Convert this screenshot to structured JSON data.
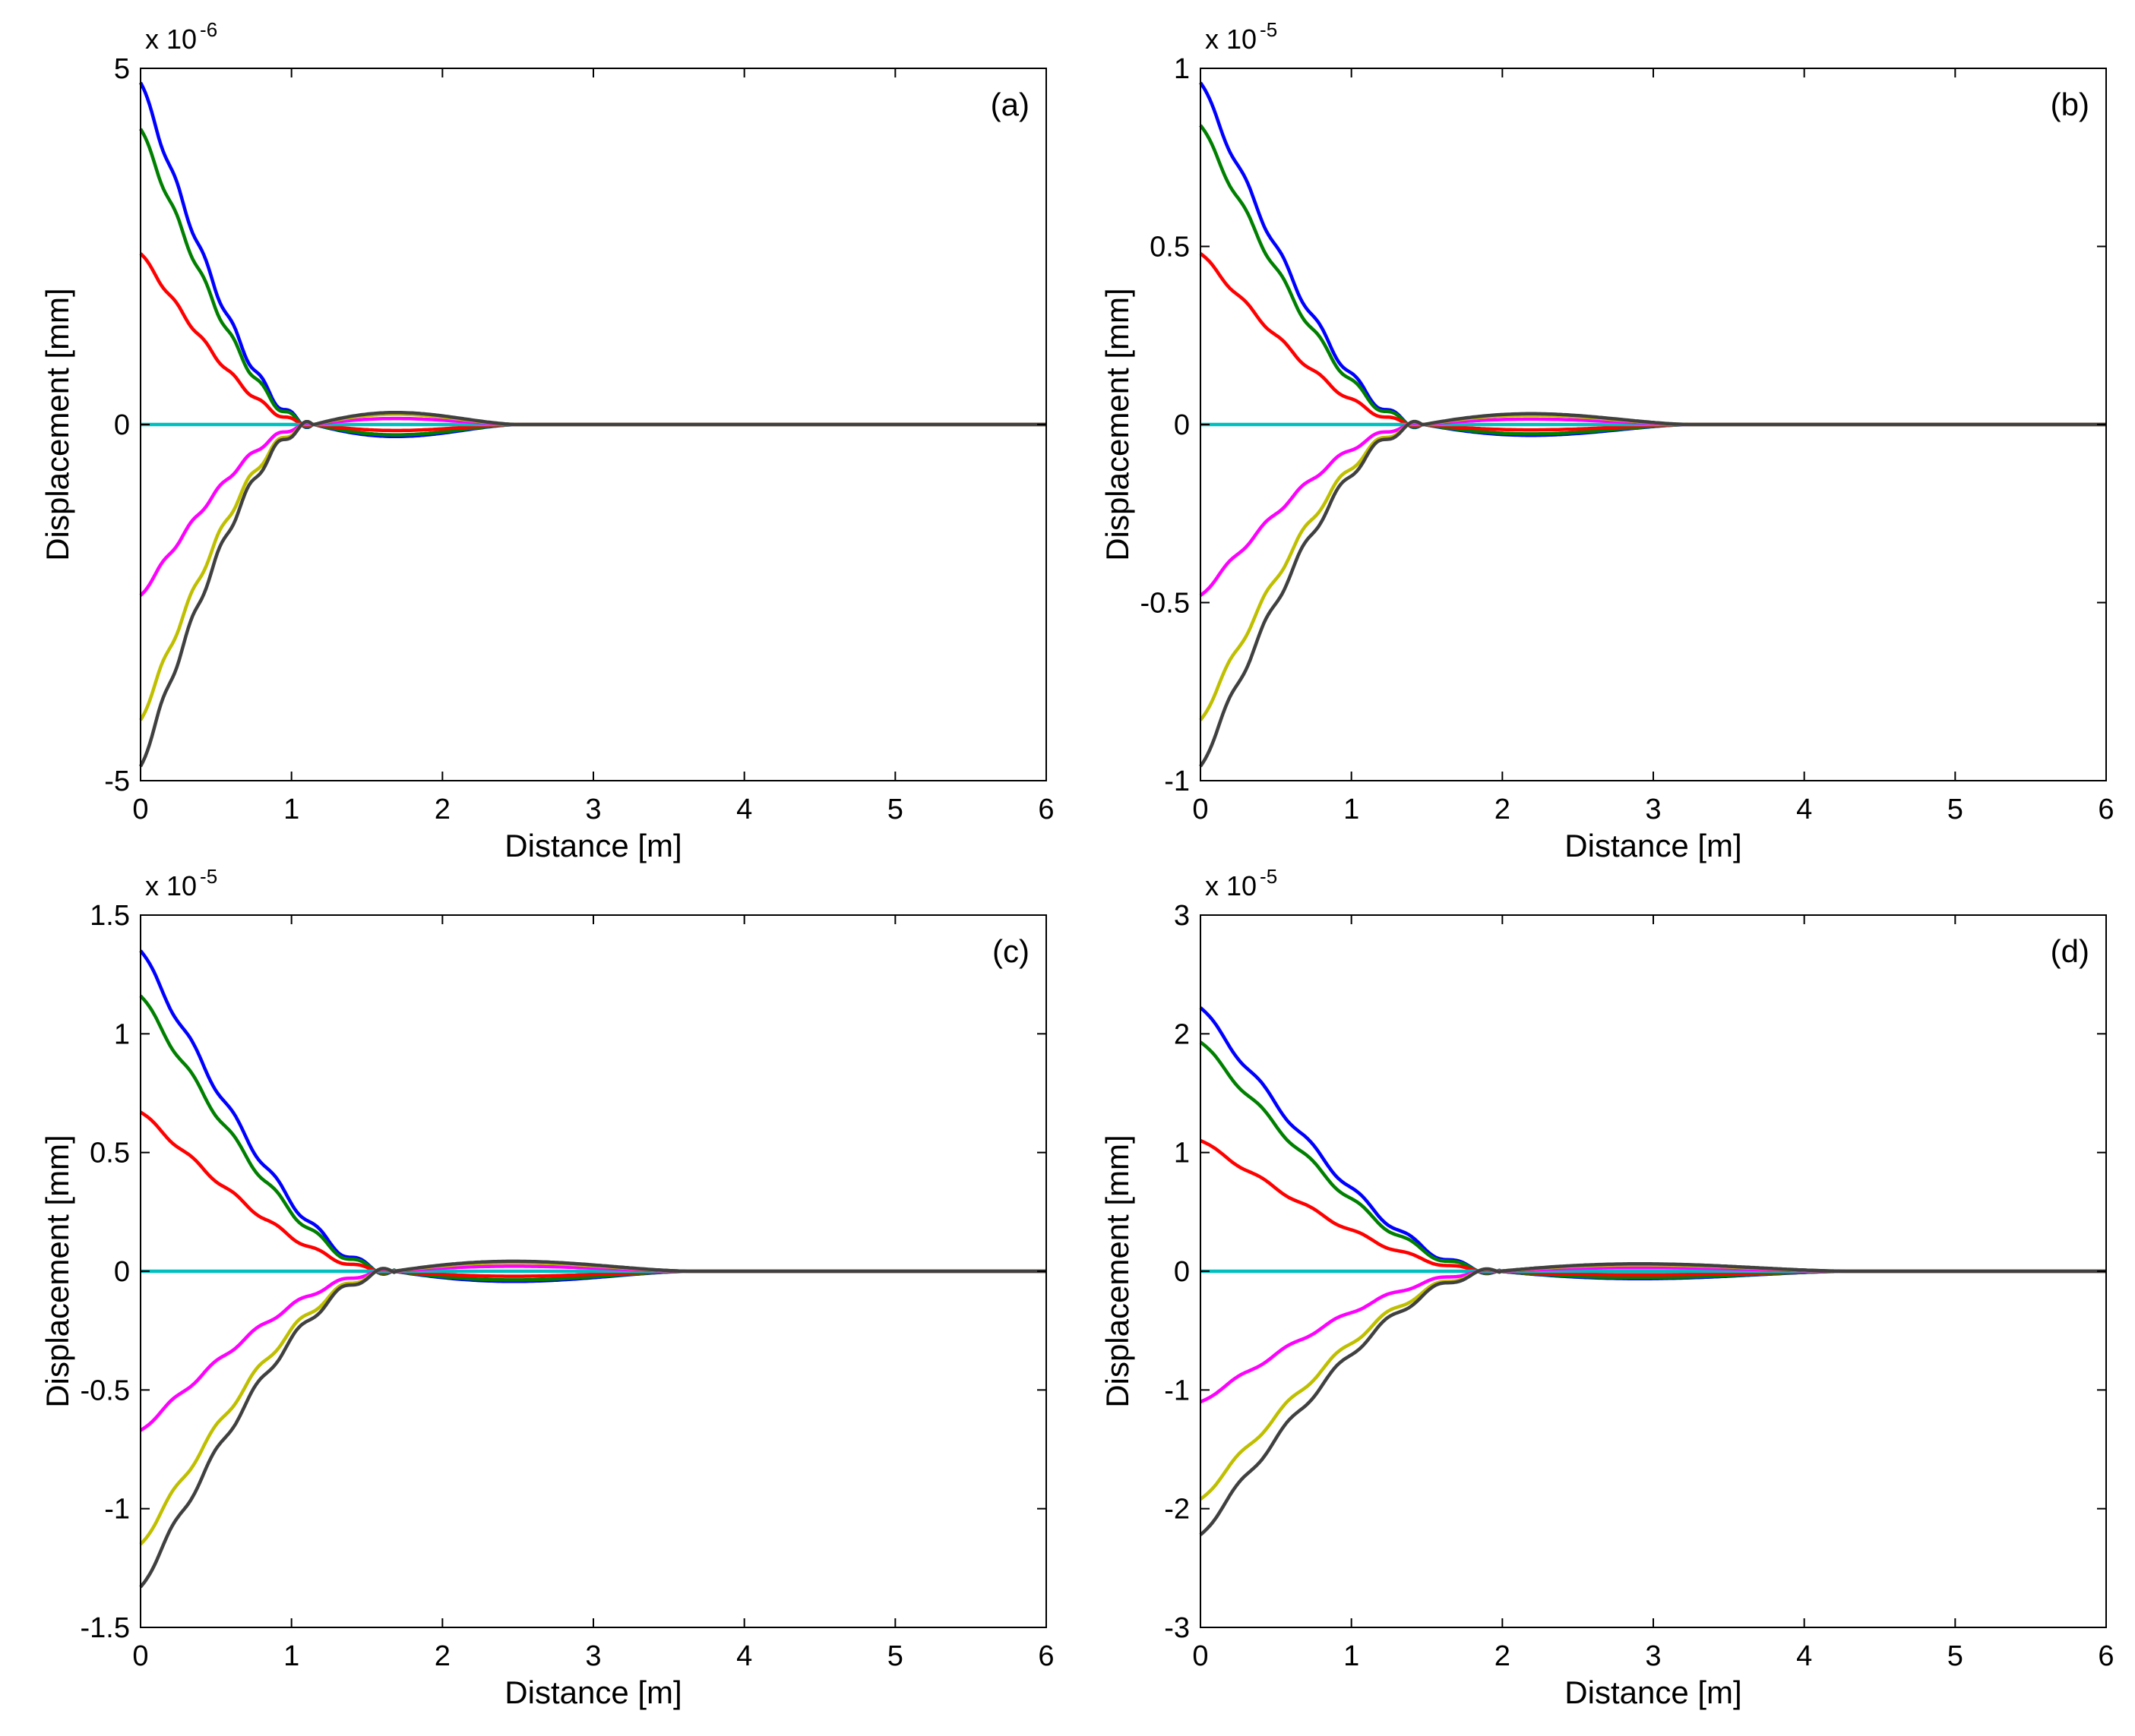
{
  "chart_data": [
    {
      "type": "line",
      "panel_label": "(a)",
      "xlabel": "Distance [m]",
      "ylabel": "Displacement [mm]",
      "y_multiplier_base": "x 10",
      "y_multiplier_exp": "-6",
      "xlim": [
        0,
        6
      ],
      "ylim": [
        -5,
        5
      ],
      "xticks": [
        0,
        1,
        2,
        3,
        4,
        5,
        6
      ],
      "yticks": [
        -5,
        0,
        5
      ],
      "grid": false,
      "cross_x": 1.15,
      "tail_end_x": 2.5,
      "lobe_scale": 0.05,
      "series": [
        {
          "name": "blue",
          "color": "#0000ff",
          "x0_value": 4.8
        },
        {
          "name": "green",
          "color": "#008000",
          "x0_value": 4.15
        },
        {
          "name": "red",
          "color": "#ff0000",
          "x0_value": 2.4
        },
        {
          "name": "cyan",
          "color": "#00bfbf",
          "x0_value": 0
        },
        {
          "name": "magenta",
          "color": "#ff00ff",
          "x0_value": -2.4
        },
        {
          "name": "yellow",
          "color": "#bfbf00",
          "x0_value": -4.15
        },
        {
          "name": "black",
          "color": "#404040",
          "x0_value": -4.8
        }
      ]
    },
    {
      "type": "line",
      "panel_label": "(b)",
      "xlabel": "Distance [m]",
      "ylabel": "Displacement [mm]",
      "y_multiplier_base": "x 10",
      "y_multiplier_exp": "-5",
      "xlim": [
        0,
        6
      ],
      "ylim": [
        -1,
        1
      ],
      "xticks": [
        0,
        1,
        2,
        3,
        4,
        5,
        6
      ],
      "yticks": [
        -1,
        -0.5,
        0,
        0.5,
        1
      ],
      "grid": false,
      "cross_x": 1.48,
      "tail_end_x": 3.25,
      "lobe_scale": 0.045,
      "series": [
        {
          "name": "blue",
          "color": "#0000ff",
          "x0_value": 0.96
        },
        {
          "name": "green",
          "color": "#008000",
          "x0_value": 0.84
        },
        {
          "name": "red",
          "color": "#ff0000",
          "x0_value": 0.48
        },
        {
          "name": "cyan",
          "color": "#00bfbf",
          "x0_value": 0
        },
        {
          "name": "magenta",
          "color": "#ff00ff",
          "x0_value": -0.48
        },
        {
          "name": "yellow",
          "color": "#bfbf00",
          "x0_value": -0.83
        },
        {
          "name": "black",
          "color": "#404040",
          "x0_value": -0.96
        }
      ]
    },
    {
      "type": "line",
      "panel_label": "(c)",
      "xlabel": "Distance [m]",
      "ylabel": "Displacement [mm]",
      "y_multiplier_base": "x 10",
      "y_multiplier_exp": "-5",
      "xlim": [
        0,
        6
      ],
      "ylim": [
        -1.5,
        1.5
      ],
      "xticks": [
        0,
        1,
        2,
        3,
        4,
        5,
        6
      ],
      "yticks": [
        -1.5,
        -1,
        -0.5,
        0,
        0.5,
        1,
        1.5
      ],
      "grid": false,
      "cross_x": 1.68,
      "tail_end_x": 3.65,
      "lobe_scale": 0.045,
      "series": [
        {
          "name": "blue",
          "color": "#0000ff",
          "x0_value": 1.35
        },
        {
          "name": "green",
          "color": "#008000",
          "x0_value": 1.16
        },
        {
          "name": "red",
          "color": "#ff0000",
          "x0_value": 0.67
        },
        {
          "name": "cyan",
          "color": "#00bfbf",
          "x0_value": 0
        },
        {
          "name": "magenta",
          "color": "#ff00ff",
          "x0_value": -0.67
        },
        {
          "name": "yellow",
          "color": "#bfbf00",
          "x0_value": -1.15
        },
        {
          "name": "black",
          "color": "#404040",
          "x0_value": -1.33
        }
      ]
    },
    {
      "type": "line",
      "panel_label": "(d)",
      "xlabel": "Distance [m]",
      "ylabel": "Displacement [mm]",
      "y_multiplier_base": "x 10",
      "y_multiplier_exp": "-5",
      "xlim": [
        0,
        6
      ],
      "ylim": [
        -3,
        3
      ],
      "xticks": [
        0,
        1,
        2,
        3,
        4,
        5,
        6
      ],
      "yticks": [
        -3,
        -2,
        -1,
        0,
        1,
        2,
        3
      ],
      "grid": false,
      "cross_x": 1.98,
      "tail_end_x": 4.3,
      "lobe_scale": 0.04,
      "series": [
        {
          "name": "blue",
          "color": "#0000ff",
          "x0_value": 2.22
        },
        {
          "name": "green",
          "color": "#008000",
          "x0_value": 1.93
        },
        {
          "name": "red",
          "color": "#ff0000",
          "x0_value": 1.1
        },
        {
          "name": "cyan",
          "color": "#00bfbf",
          "x0_value": 0
        },
        {
          "name": "magenta",
          "color": "#ff00ff",
          "x0_value": -1.1
        },
        {
          "name": "yellow",
          "color": "#bfbf00",
          "x0_value": -1.92
        },
        {
          "name": "black",
          "color": "#404040",
          "x0_value": -2.22
        }
      ]
    }
  ]
}
